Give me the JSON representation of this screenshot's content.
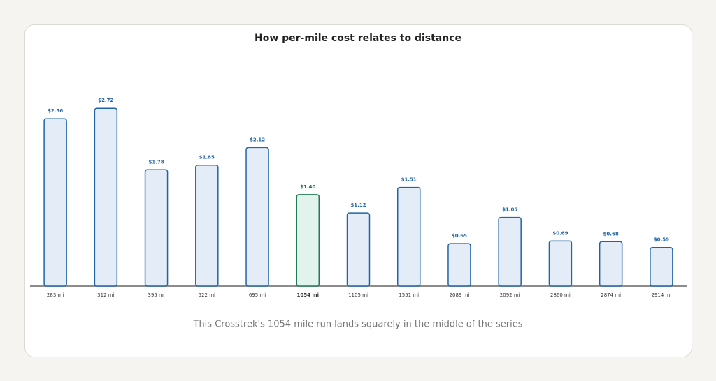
{
  "chart_data": {
    "type": "bar",
    "title": "How per-mile cost relates to distance",
    "caption": "This Crosstrek's 1054 mile run lands squarely in the middle of the series",
    "categories": [
      "283 mi",
      "312 mi",
      "395 mi",
      "522 mi",
      "695 mi",
      "1054 mi",
      "1105 mi",
      "1551 mi",
      "2089 mi",
      "2092 mi",
      "2860 mi",
      "2874 mi",
      "2914 mi"
    ],
    "values": [
      2.56,
      2.72,
      1.78,
      1.85,
      2.12,
      1.4,
      1.12,
      1.51,
      0.65,
      1.05,
      0.69,
      0.68,
      0.59
    ],
    "value_labels": [
      "$2.56",
      "$2.72",
      "$1.78",
      "$1.85",
      "$2.12",
      "$1.40",
      "$1.12",
      "$1.51",
      "$0.65",
      "$1.05",
      "$0.69",
      "$0.68",
      "$0.59"
    ],
    "color": "#1f64a8",
    "fill": "#e3ecf7",
    "highlight": {
      "index": 5,
      "color": "#1e7a52",
      "fill": "#e1f3ec"
    },
    "ylim": [
      0,
      3
    ]
  }
}
